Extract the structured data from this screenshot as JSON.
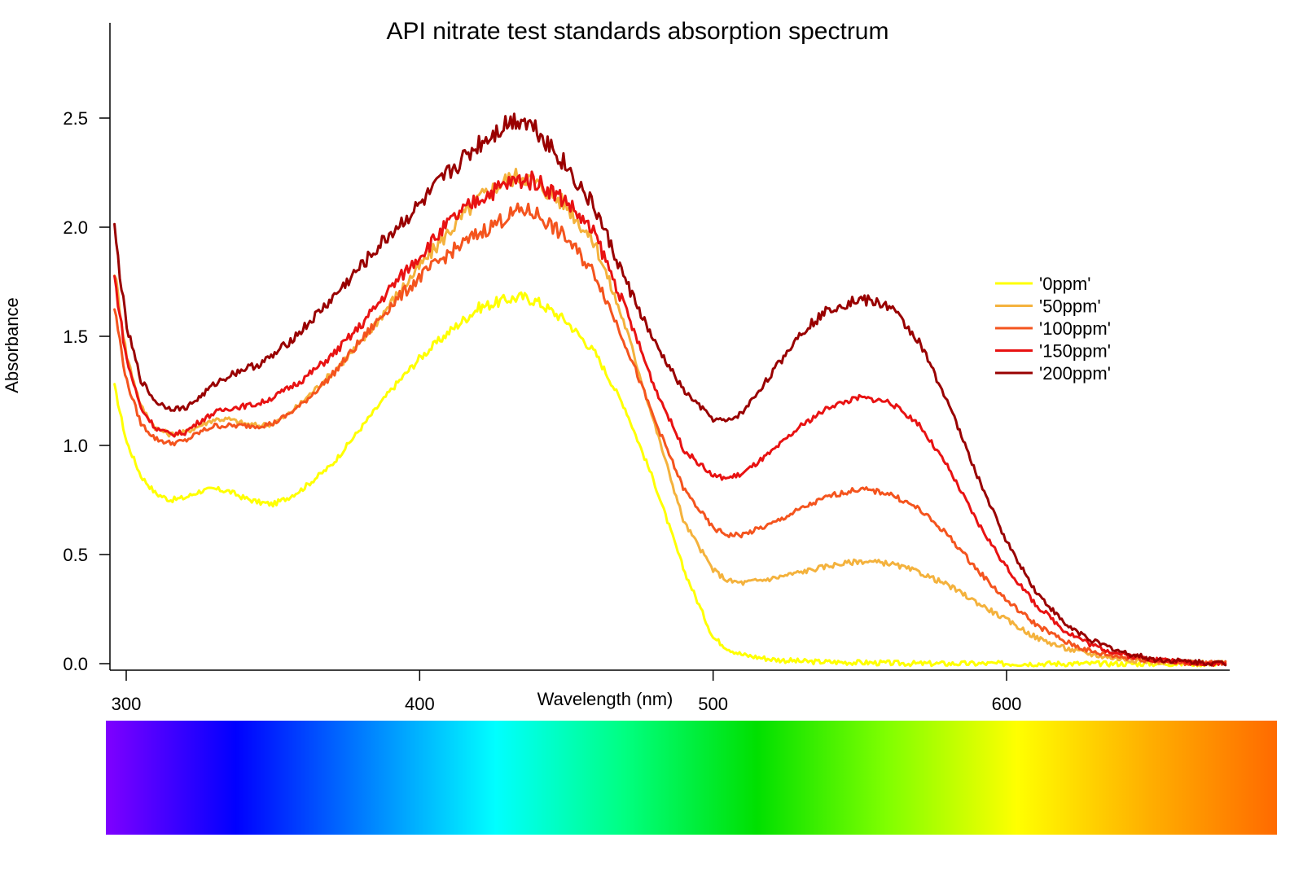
{
  "chart_data": {
    "type": "line",
    "title": "API nitrate test standards absorption spectrum",
    "xlabel": "Wavelength (nm)",
    "ylabel": "Absorbance",
    "xlim": [
      295,
      675
    ],
    "ylim": [
      -0.02,
      2.95
    ],
    "x_ticks": [
      300,
      400,
      500,
      600
    ],
    "x_tick_labels": [
      "300",
      "400",
      "500",
      "600"
    ],
    "y_ticks": [
      0.0,
      0.5,
      1.0,
      1.5,
      2.0,
      2.5
    ],
    "y_tick_labels": [
      "0.0",
      "0.5",
      "1.0",
      "1.5",
      "2.0",
      "2.5"
    ],
    "grid": false,
    "legend_position": "right",
    "spectrum_bar": {
      "x_range": [
        292,
        690
      ],
      "stops": [
        "#7f00ff",
        "#0000ff",
        "#0080ff",
        "#00ffff",
        "#00ff80",
        "#00e000",
        "#80ff00",
        "#ffff00",
        "#ffb000",
        "#ff6a00"
      ]
    },
    "series": [
      {
        "name": "'0ppm'",
        "color": "#ffff00",
        "x": [
          296,
          300,
          305,
          310,
          315,
          320,
          325,
          330,
          335,
          340,
          345,
          350,
          355,
          360,
          370,
          380,
          390,
          400,
          410,
          420,
          430,
          435,
          440,
          450,
          460,
          470,
          480,
          490,
          500,
          505,
          510,
          520,
          530,
          550,
          570,
          600,
          630,
          660,
          675
        ],
        "y": [
          1.27,
          1.02,
          0.86,
          0.78,
          0.75,
          0.76,
          0.79,
          0.8,
          0.79,
          0.76,
          0.74,
          0.73,
          0.76,
          0.8,
          0.91,
          1.08,
          1.25,
          1.4,
          1.52,
          1.63,
          1.67,
          1.68,
          1.66,
          1.57,
          1.42,
          1.17,
          0.83,
          0.43,
          0.12,
          0.07,
          0.04,
          0.02,
          0.01,
          0.005,
          0.0,
          0.0,
          0.0,
          0.0,
          0.0
        ]
      },
      {
        "name": "'50ppm'",
        "color": "#f4b23d",
        "x": [
          296,
          300,
          305,
          310,
          315,
          320,
          325,
          330,
          335,
          340,
          345,
          350,
          355,
          360,
          370,
          380,
          390,
          400,
          410,
          420,
          430,
          435,
          440,
          450,
          460,
          470,
          480,
          490,
          500,
          505,
          510,
          520,
          530,
          540,
          550,
          560,
          570,
          580,
          590,
          600,
          610,
          620,
          630,
          640,
          650,
          660,
          675
        ],
        "y": [
          1.8,
          1.42,
          1.18,
          1.08,
          1.05,
          1.06,
          1.09,
          1.12,
          1.12,
          1.1,
          1.09,
          1.1,
          1.14,
          1.2,
          1.33,
          1.47,
          1.65,
          1.82,
          1.98,
          2.13,
          2.22,
          2.24,
          2.2,
          2.1,
          1.92,
          1.55,
          1.1,
          0.65,
          0.43,
          0.38,
          0.37,
          0.39,
          0.42,
          0.45,
          0.47,
          0.46,
          0.42,
          0.36,
          0.28,
          0.2,
          0.12,
          0.07,
          0.04,
          0.02,
          0.01,
          0.005,
          0.0
        ]
      },
      {
        "name": "'100ppm'",
        "color": "#f4541e",
        "x": [
          296,
          300,
          305,
          310,
          315,
          320,
          325,
          330,
          335,
          340,
          345,
          350,
          355,
          360,
          370,
          380,
          390,
          400,
          410,
          420,
          430,
          435,
          440,
          450,
          460,
          470,
          480,
          490,
          500,
          505,
          510,
          520,
          530,
          540,
          550,
          560,
          570,
          580,
          590,
          600,
          610,
          620,
          630,
          640,
          650,
          660,
          675
        ],
        "y": [
          1.63,
          1.3,
          1.1,
          1.03,
          1.01,
          1.02,
          1.06,
          1.09,
          1.09,
          1.09,
          1.09,
          1.1,
          1.14,
          1.19,
          1.32,
          1.48,
          1.64,
          1.77,
          1.88,
          1.97,
          2.05,
          2.08,
          2.06,
          1.95,
          1.78,
          1.47,
          1.12,
          0.8,
          0.62,
          0.59,
          0.59,
          0.64,
          0.71,
          0.77,
          0.8,
          0.78,
          0.71,
          0.59,
          0.43,
          0.29,
          0.18,
          0.1,
          0.05,
          0.03,
          0.015,
          0.005,
          0.0
        ]
      },
      {
        "name": "'150ppm'",
        "color": "#e81212",
        "x": [
          296,
          300,
          305,
          310,
          315,
          320,
          325,
          330,
          335,
          340,
          345,
          350,
          355,
          360,
          370,
          380,
          390,
          400,
          410,
          420,
          430,
          435,
          440,
          450,
          460,
          470,
          480,
          490,
          500,
          505,
          510,
          520,
          530,
          540,
          550,
          560,
          570,
          580,
          590,
          600,
          610,
          620,
          630,
          640,
          650,
          660,
          675
        ],
        "y": [
          1.77,
          1.4,
          1.17,
          1.08,
          1.05,
          1.06,
          1.11,
          1.15,
          1.17,
          1.18,
          1.19,
          1.22,
          1.26,
          1.3,
          1.41,
          1.55,
          1.72,
          1.87,
          2.02,
          2.13,
          2.2,
          2.22,
          2.21,
          2.12,
          1.96,
          1.63,
          1.27,
          0.98,
          0.86,
          0.85,
          0.87,
          0.97,
          1.09,
          1.18,
          1.22,
          1.2,
          1.1,
          0.9,
          0.65,
          0.44,
          0.27,
          0.15,
          0.08,
          0.04,
          0.02,
          0.008,
          0.0
        ]
      },
      {
        "name": "'200ppm'",
        "color": "#990000",
        "x": [
          296,
          300,
          305,
          310,
          315,
          320,
          325,
          330,
          335,
          340,
          345,
          350,
          355,
          360,
          370,
          380,
          390,
          400,
          410,
          420,
          430,
          435,
          440,
          450,
          460,
          470,
          480,
          490,
          500,
          505,
          510,
          520,
          530,
          540,
          550,
          560,
          570,
          580,
          590,
          600,
          610,
          620,
          630,
          640,
          650,
          660,
          675
        ],
        "y": [
          1.99,
          1.55,
          1.3,
          1.2,
          1.17,
          1.17,
          1.22,
          1.28,
          1.32,
          1.35,
          1.37,
          1.41,
          1.47,
          1.53,
          1.67,
          1.82,
          1.97,
          2.1,
          2.25,
          2.38,
          2.48,
          2.5,
          2.45,
          2.28,
          2.08,
          1.76,
          1.47,
          1.25,
          1.12,
          1.11,
          1.15,
          1.33,
          1.52,
          1.63,
          1.67,
          1.64,
          1.48,
          1.2,
          0.86,
          0.56,
          0.33,
          0.18,
          0.1,
          0.05,
          0.02,
          0.01,
          0.0
        ]
      }
    ]
  }
}
